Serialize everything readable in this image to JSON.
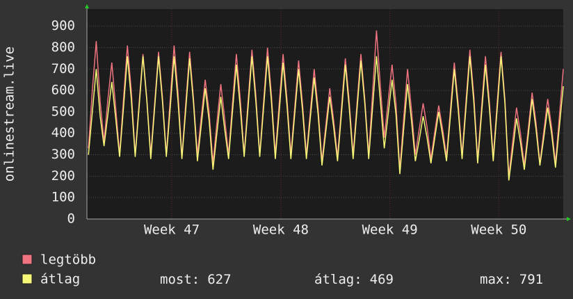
{
  "chart_data": {
    "type": "line",
    "y_label": "onlinestream.live",
    "x": [
      0.1,
      0.35,
      0.6,
      0.85,
      1.1,
      1.35,
      1.6,
      1.85,
      2.1,
      2.35,
      2.6,
      2.85,
      3.1,
      3.35,
      3.6,
      3.85,
      4.1,
      4.35,
      4.6,
      4.85,
      5.1,
      5.35,
      5.6,
      5.85,
      6.1,
      6.35,
      6.6,
      6.85,
      7.1,
      7.35,
      7.6,
      7.85,
      8.1,
      8.35,
      8.6,
      8.85,
      9.1,
      9.35,
      9.6,
      9.85,
      10.1,
      10.35,
      10.6,
      10.85,
      11.1,
      11.35,
      11.6,
      11.85,
      12.1,
      12.35,
      12.6,
      12.85,
      13.1,
      13.35,
      13.6,
      13.85,
      14.1,
      14.35,
      14.6,
      14.85,
      15.1,
      15.35,
      15.6,
      15.85,
      16.1,
      16.35,
      16.6,
      16.85,
      17.1,
      17.35,
      17.6,
      17.85,
      18.1,
      18.35,
      18.6,
      18.85,
      19.1,
      19.35,
      19.6,
      19.85,
      20.1,
      20.35,
      20.6,
      20.85,
      21.1,
      21.35,
      21.6,
      21.85,
      22.1,
      22.35,
      22.6,
      22.85,
      23.1,
      23.35,
      23.6,
      23.85,
      24.1,
      24.35,
      24.6,
      24.85,
      25.1,
      25.35,
      25.6,
      25.85,
      26.1,
      26.35,
      26.6,
      26.85,
      27.1,
      27.35,
      27.6,
      27.85,
      28.1,
      28.35,
      28.6,
      28.85,
      29.1,
      29.35,
      29.6,
      29.85,
      30.1,
      30.35,
      30.6
    ],
    "series": [
      {
        "name": "legtöbb",
        "color": "#f07480",
        "values": [
          330,
          600,
          830,
          550,
          360,
          560,
          730,
          520,
          300,
          560,
          810,
          600,
          300,
          540,
          770,
          560,
          300,
          540,
          780,
          570,
          300,
          560,
          810,
          590,
          290,
          540,
          780,
          560,
          300,
          480,
          650,
          500,
          260,
          450,
          630,
          470,
          300,
          540,
          770,
          560,
          300,
          550,
          790,
          580,
          300,
          550,
          800,
          580,
          300,
          540,
          770,
          560,
          300,
          520,
          740,
          540,
          300,
          500,
          700,
          520,
          270,
          440,
          610,
          460,
          290,
          520,
          750,
          550,
          300,
          540,
          770,
          560,
          300,
          590,
          880,
          620,
          380,
          550,
          720,
          540,
          230,
          470,
          700,
          510,
          300,
          420,
          540,
          430,
          280,
          410,
          530,
          420,
          290,
          510,
          730,
          540,
          300,
          550,
          790,
          580,
          280,
          520,
          760,
          550,
          290,
          540,
          780,
          560,
          200,
          360,
          520,
          400,
          250,
          420,
          590,
          450,
          260,
          410,
          560,
          430,
          260,
          480,
          700
        ]
      },
      {
        "name": "átlag",
        "color": "#f8f878",
        "values": [
          300,
          500,
          700,
          480,
          340,
          490,
          640,
          470,
          290,
          520,
          760,
          560,
          290,
          520,
          760,
          550,
          280,
          520,
          760,
          550,
          290,
          520,
          760,
          550,
          280,
          510,
          750,
          540,
          270,
          440,
          610,
          460,
          230,
          400,
          570,
          420,
          280,
          500,
          720,
          520,
          290,
          520,
          760,
          550,
          290,
          520,
          760,
          550,
          280,
          500,
          730,
          530,
          280,
          490,
          700,
          510,
          280,
          470,
          660,
          490,
          250,
          410,
          570,
          430,
          270,
          490,
          720,
          520,
          280,
          510,
          740,
          540,
          280,
          520,
          760,
          550,
          330,
          490,
          650,
          490,
          210,
          420,
          630,
          460,
          270,
          370,
          480,
          380,
          260,
          380,
          500,
          390,
          270,
          480,
          700,
          510,
          280,
          520,
          760,
          550,
          260,
          490,
          720,
          520,
          270,
          510,
          760,
          540,
          180,
          320,
          470,
          360,
          230,
          390,
          560,
          420,
          250,
          380,
          520,
          400,
          240,
          430,
          620
        ]
      }
    ],
    "xlim": [
      0,
      30.6
    ],
    "xticks": [
      {
        "value": 5.45,
        "label": "Week 47"
      },
      {
        "value": 12.46,
        "label": "Week 48"
      },
      {
        "value": 19.46,
        "label": "Week 49"
      },
      {
        "value": 26.46,
        "label": "Week 50"
      }
    ],
    "ylim": [
      0,
      980
    ],
    "yticks": [
      0,
      100,
      200,
      300,
      400,
      500,
      600,
      700,
      800,
      900
    ],
    "grid": true,
    "stats": [
      {
        "label": "most:",
        "value": 627
      },
      {
        "label": "átlag:",
        "value": 469
      },
      {
        "label": "max:",
        "value": 791
      }
    ]
  }
}
